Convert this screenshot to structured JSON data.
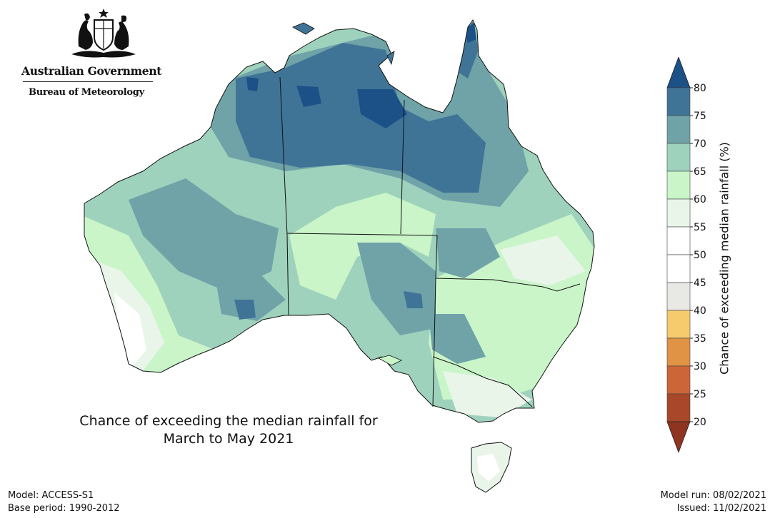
{
  "header": {
    "government": "Australian Government",
    "agency": "Bureau of Meteorology"
  },
  "map": {
    "title_line1": "Chance of exceeding the median rainfall for",
    "title_line2": "March to May 2021",
    "overall_tendency": "wetter than median in most of northern, central and eastern Australia",
    "colors": {
      "band_20_25": "#a9472a",
      "band_25_30": "#cc6537",
      "band_30_35": "#e09345",
      "band_35_40": "#f6cb6e",
      "band_40_45": "#e8e8e4",
      "band_45_55": "#ffffff",
      "band_55_60": "#e9f5e9",
      "band_60_65": "#c9f5c8",
      "band_65_70": "#9ed2bc",
      "band_70_75": "#6fa3a8",
      "band_75_80": "#3f7497",
      "band_80_plus": "#1b5187"
    }
  },
  "legend": {
    "title": "Chance of exceeding median rainfall (%)",
    "ticks": [
      "20",
      "25",
      "30",
      "35",
      "40",
      "45",
      "50",
      "55",
      "60",
      "65",
      "70",
      "75",
      "80"
    ],
    "top_color": "#1b5187",
    "bottom_color": "#8e3420",
    "bands": [
      {
        "range": "75-80",
        "color": "#3f7497"
      },
      {
        "range": "70-75",
        "color": "#6fa3a8"
      },
      {
        "range": "65-70",
        "color": "#9ed2bc"
      },
      {
        "range": "60-65",
        "color": "#c9f5c8"
      },
      {
        "range": "55-60",
        "color": "#e9f5e9"
      },
      {
        "range": "50-55",
        "color": "#ffffff"
      },
      {
        "range": "45-50",
        "color": "#ffffff"
      },
      {
        "range": "40-45",
        "color": "#e8e8e4"
      },
      {
        "range": "35-40",
        "color": "#f6cb6e"
      },
      {
        "range": "30-35",
        "color": "#e09345"
      },
      {
        "range": "25-30",
        "color": "#cc6537"
      },
      {
        "range": "20-25",
        "color": "#a9472a"
      }
    ]
  },
  "footer": {
    "model": "Model: ACCESS-S1",
    "base_period": "Base period: 1990-2012",
    "model_run": "Model run: 08/02/2021",
    "issued": "Issued: 11/02/2021"
  }
}
